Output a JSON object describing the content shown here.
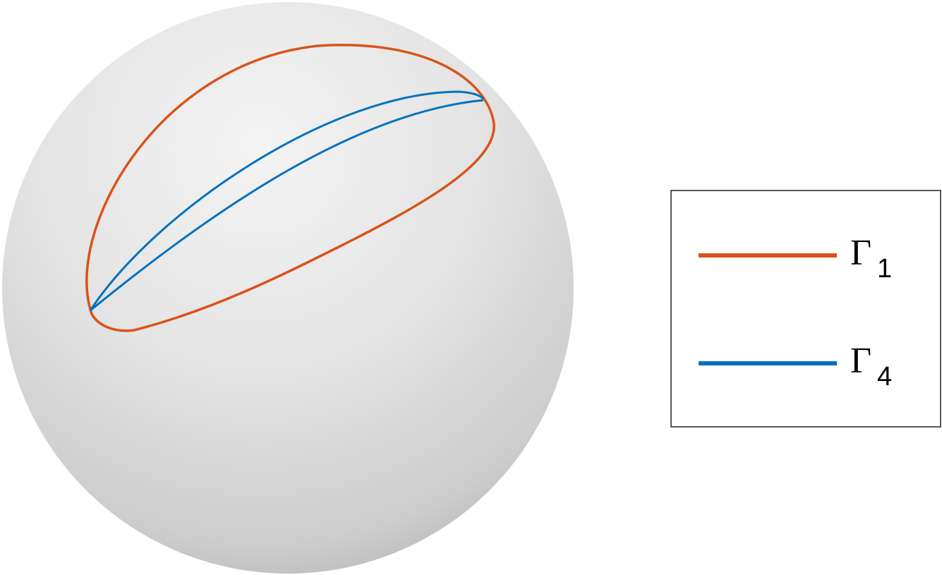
{
  "legend": {
    "items": [
      {
        "symbol": "Γ",
        "subscript": "1",
        "color": "#d95319"
      },
      {
        "symbol": "Γ",
        "subscript": "4",
        "color": "#0072bd"
      }
    ]
  }
}
